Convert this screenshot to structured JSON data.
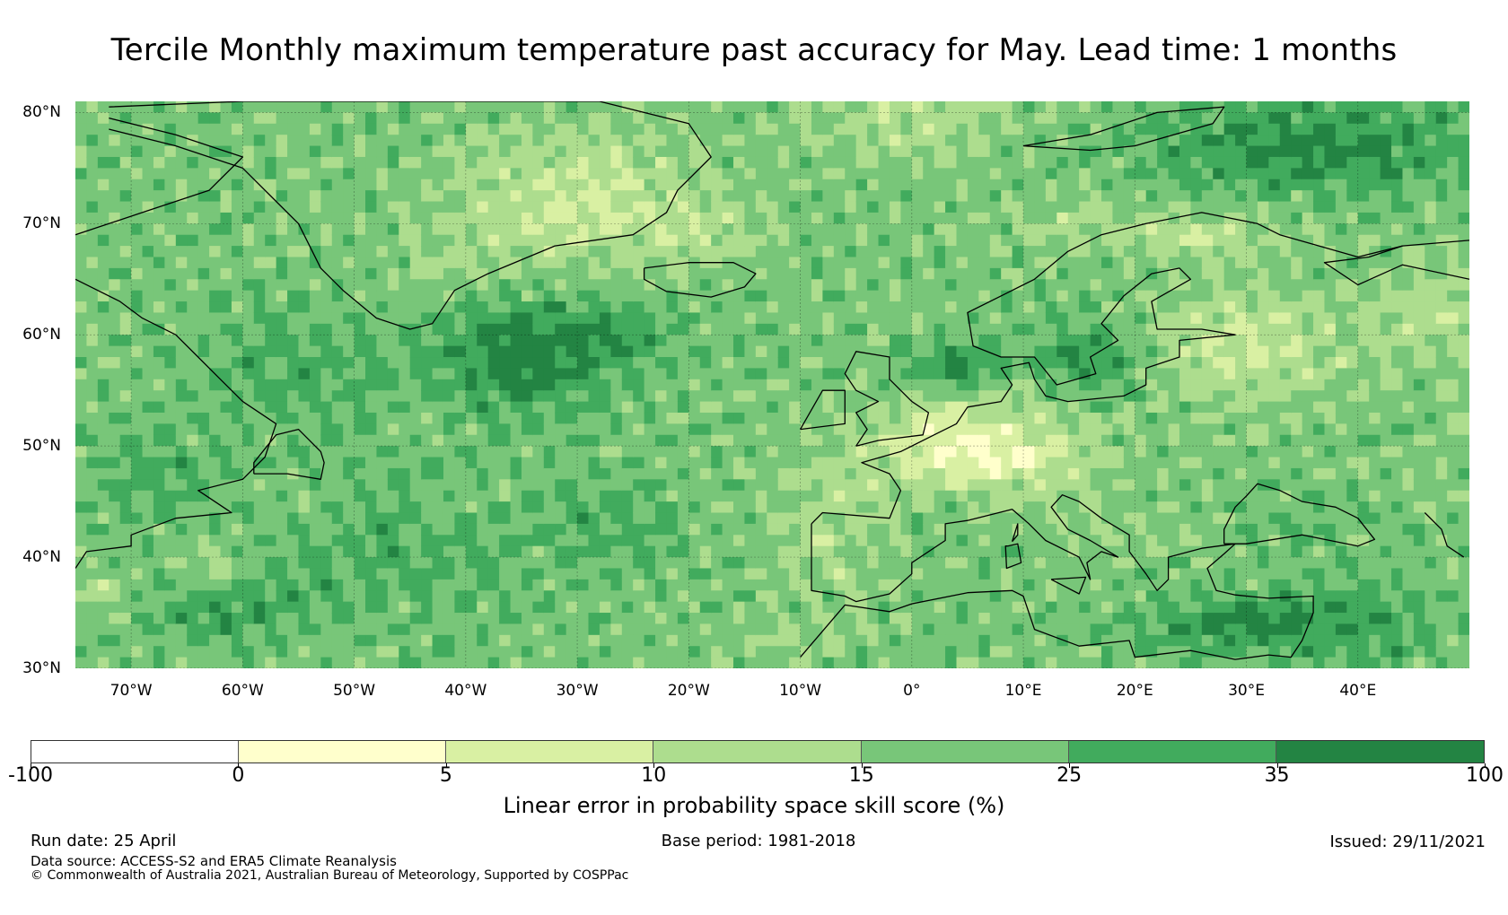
{
  "title": "Tercile Monthly maximum temperature past accuracy for May. Lead time: 1 months",
  "map": {
    "projection": "equirectangular",
    "extent": {
      "lon": [
        -75,
        50
      ],
      "lat": [
        30,
        81
      ]
    },
    "gridlines": true,
    "coastline_color": "#000000",
    "lat_labels": [
      {
        "lat": 80,
        "text": "80°N"
      },
      {
        "lat": 70,
        "text": "70°N"
      },
      {
        "lat": 60,
        "text": "60°N"
      },
      {
        "lat": 50,
        "text": "50°N"
      },
      {
        "lat": 40,
        "text": "40°N"
      },
      {
        "lat": 30,
        "text": "30°N"
      }
    ],
    "lon_labels": [
      {
        "lon": -70,
        "text": "70°W"
      },
      {
        "lon": -60,
        "text": "60°W"
      },
      {
        "lon": -50,
        "text": "50°W"
      },
      {
        "lon": -40,
        "text": "40°W"
      },
      {
        "lon": -30,
        "text": "30°W"
      },
      {
        "lon": -20,
        "text": "20°W"
      },
      {
        "lon": -10,
        "text": "10°W"
      },
      {
        "lon": 0,
        "text": "0°"
      },
      {
        "lon": 10,
        "text": "10°E"
      },
      {
        "lon": 20,
        "text": "20°E"
      },
      {
        "lon": 30,
        "text": "30°E"
      },
      {
        "lon": 40,
        "text": "40°E"
      }
    ]
  },
  "colorbar": {
    "label": "Linear error in probability space skill score (%)",
    "bins": [
      {
        "from": -100,
        "to": 0,
        "color": "#ffffff"
      },
      {
        "from": 0,
        "to": 5,
        "color": "#ffffcc"
      },
      {
        "from": 5,
        "to": 10,
        "color": "#d9f0a3"
      },
      {
        "from": 10,
        "to": 15,
        "color": "#addd8e"
      },
      {
        "from": 15,
        "to": 25,
        "color": "#78c679"
      },
      {
        "from": 25,
        "to": 35,
        "color": "#41ab5d"
      },
      {
        "from": 35,
        "to": 100,
        "color": "#238443"
      }
    ],
    "ticks": [
      "-100",
      "0",
      "5",
      "10",
      "15",
      "25",
      "35",
      "100"
    ]
  },
  "footer": {
    "run_date": "Run date: 25 April",
    "base_period": "Base period: 1981-2018",
    "issued": "Issued: 29/11/2021",
    "data_source": "Data source: ACCESS-S2 and ERA5 Climate Reanalysis",
    "copyright": "© Commonwealth of Australia 2021, Australian Bureau of Meteorology, Supported by COSPPac"
  }
}
